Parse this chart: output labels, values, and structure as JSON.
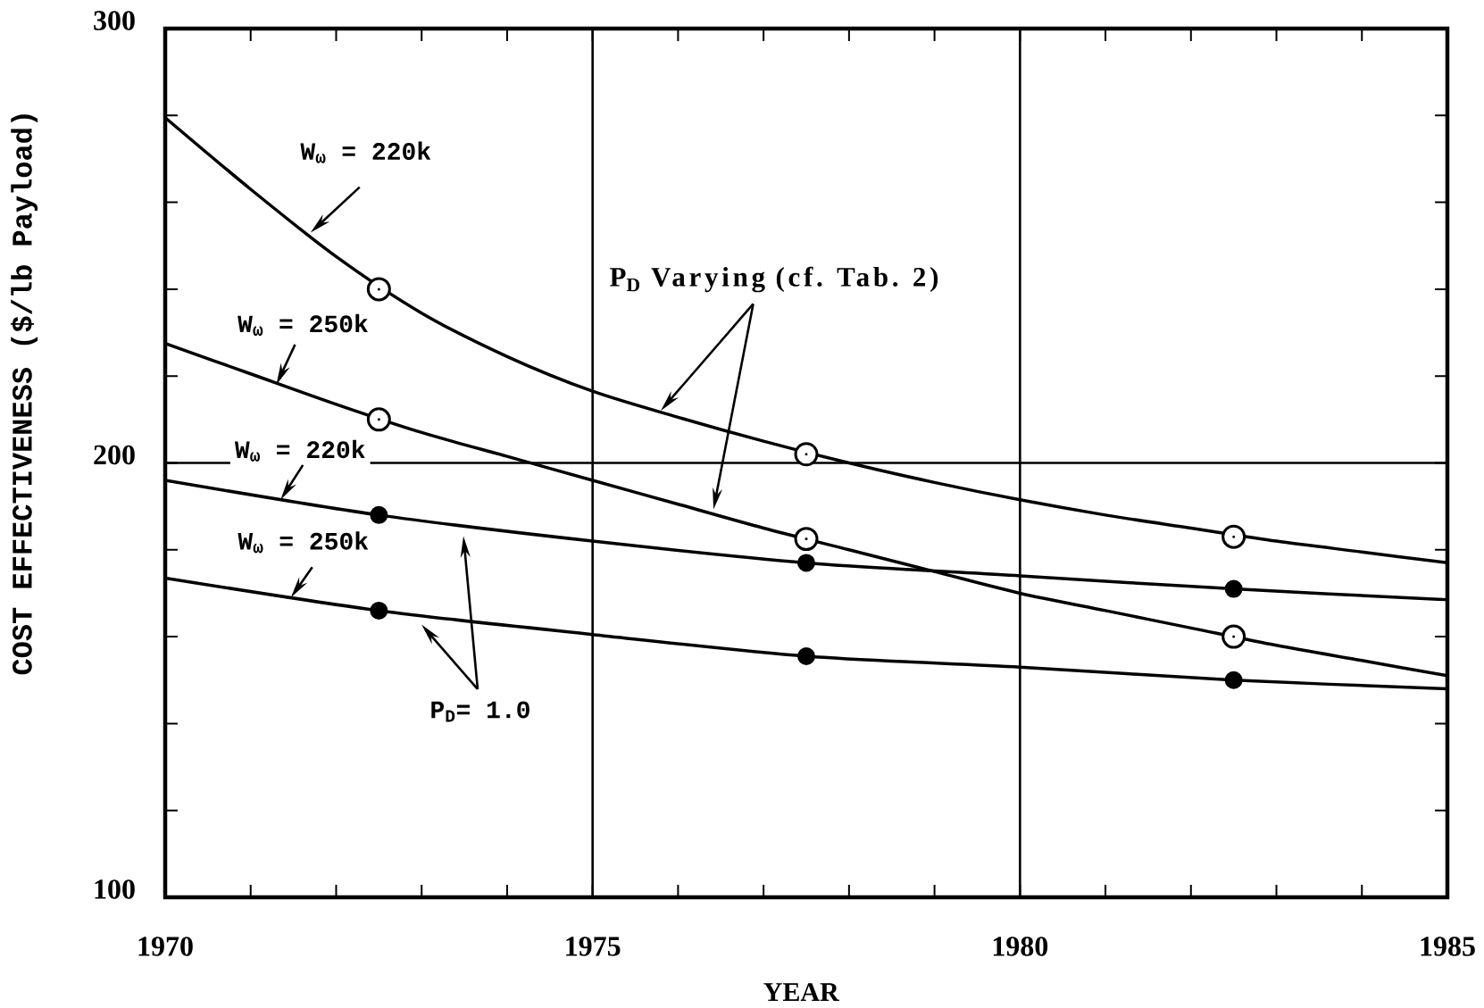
{
  "chart_data": {
    "type": "line",
    "xlabel": "YEAR",
    "ylabel": "COST EFFECTIVENESS ($/lb Payload)",
    "xlim": [
      1970,
      1985
    ],
    "ylim": [
      100,
      300
    ],
    "xticks": [
      1970,
      {
        "value": 1971,
        "label": null
      },
      {
        "value": 1972,
        "label": null
      },
      {
        "value": 1973,
        "label": null
      },
      {
        "value": 1974,
        "label": null
      },
      1975,
      {
        "value": 1976,
        "label": null
      },
      {
        "value": 1977,
        "label": null
      },
      {
        "value": 1978,
        "label": null
      },
      {
        "value": 1979,
        "label": null
      },
      1980,
      {
        "value": 1981,
        "label": null
      },
      {
        "value": 1982,
        "label": null
      },
      {
        "value": 1983,
        "label": null
      },
      {
        "value": 1984,
        "label": null
      },
      1985
    ],
    "yticks": [
      100,
      {
        "value": 120,
        "label": null
      },
      {
        "value": 140,
        "label": null
      },
      {
        "value": 160,
        "label": null
      },
      {
        "value": 180,
        "label": null
      },
      200,
      {
        "value": 220,
        "label": null
      },
      {
        "value": 240,
        "label": null
      },
      {
        "value": 260,
        "label": null
      },
      {
        "value": 280,
        "label": null
      },
      300
    ],
    "grid": true,
    "series": [
      {
        "color": "#000000",
        "x": [
          1970,
          1971,
          1972,
          1973,
          1974,
          1975,
          1976,
          1977,
          1978,
          1979,
          1980,
          1981,
          1982,
          1983,
          1984,
          1985
        ],
        "values": [
          279.5,
          263,
          247.5,
          234.5,
          224.5,
          216.5,
          210.5,
          205,
          200,
          195.5,
          191.5,
          188,
          185,
          182,
          179.5,
          177
        ]
      },
      {
        "color": "#000000",
        "x": [
          1970,
          1971,
          1972,
          1973,
          1974,
          1975,
          1976,
          1977,
          1978,
          1979,
          1980,
          1981,
          1982,
          1983,
          1984,
          1985
        ],
        "values": [
          227.5,
          220.5,
          213.5,
          207,
          201.5,
          196,
          190.5,
          185,
          180,
          175,
          170,
          166,
          162,
          158,
          154.5,
          151
        ]
      },
      {
        "color": "#000000",
        "x": [
          1970,
          1972.5,
          1975,
          1977.5,
          1980,
          1982.5,
          1985
        ],
        "values": [
          196,
          188,
          182,
          177,
          174,
          171,
          168.5
        ]
      },
      {
        "color": "#000000",
        "x": [
          1970,
          1972.5,
          1975,
          1977.5,
          1980,
          1982.5,
          1985
        ],
        "values": [
          173.5,
          166,
          160.5,
          155.5,
          153,
          150,
          148
        ]
      },
      {
        "type": "scatter",
        "marker": "circle open",
        "color": "#000000",
        "x": [
          1972.5,
          1977.5,
          1982.5
        ],
        "values": [
          240,
          202,
          183
        ]
      },
      {
        "type": "scatter",
        "marker": "circle open",
        "color": "#000000",
        "x": [
          1972.5,
          1977.5,
          1982.5
        ],
        "values": [
          210,
          182.5,
          160
        ]
      },
      {
        "type": "scatter",
        "marker": "circle",
        "color": "#000000",
        "x": [
          1972.5,
          1977.5,
          1982.5
        ],
        "values": [
          188,
          177,
          171
        ]
      },
      {
        "type": "scatter",
        "marker": "circle",
        "color": "#000000",
        "x": [
          1972.5,
          1977.5,
          1982.5
        ],
        "values": [
          166,
          155.5,
          150
        ]
      }
    ],
    "annotations": [
      {
        "text": "W$_{ω}$ = 220k",
        "x": 1971.7,
        "y": 253
      },
      {
        "text": "W$_{ω}$ = 250k",
        "x": 1971.3,
        "y": 218
      },
      {
        "text": "W$_{ω}$ = 220k",
        "x": 1971.35,
        "y": 191.5
      },
      {
        "text": "W$_{ω}$ = 250k",
        "x": 1971.47,
        "y": 169
      },
      "P$_{D}$ Varying (cf. Tab. 2)",
      "P$_{D}$= 1.0"
    ]
  }
}
